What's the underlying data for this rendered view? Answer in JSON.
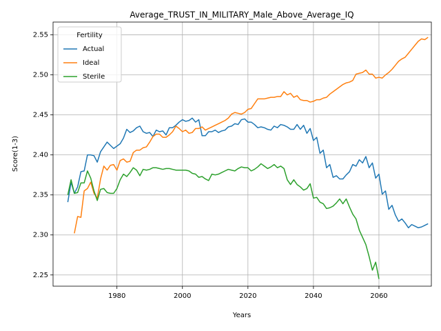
{
  "chart_data": {
    "type": "line",
    "title": "Average_TRUST_IN_MILITARY_Male_Above_Average_IQ",
    "x_label": "Years",
    "y_label": "Score(1-3)",
    "legend_title": "Fertility",
    "legend_position": "upper left",
    "grid": true,
    "xlim": [
      1960.5,
      2076
    ],
    "ylim": [
      2.236,
      2.566
    ],
    "xticks": [
      1980,
      2000,
      2020,
      2040,
      2060
    ],
    "yticks": [
      2.25,
      {
        "value": 2.3,
        "label": "2.30"
      },
      2.35,
      {
        "value": 2.4,
        "label": "2.40"
      },
      2.45,
      {
        "value": 2.5,
        "label": "2.50"
      },
      2.55
    ],
    "x": [
      1965,
      1966,
      1967,
      1968,
      1969,
      1970,
      1971,
      1972,
      1973,
      1974,
      1975,
      1976,
      1977,
      1978,
      1979,
      1980,
      1981,
      1982,
      1983,
      1984,
      1985,
      1986,
      1987,
      1988,
      1989,
      1990,
      1991,
      1992,
      1993,
      1994,
      1995,
      1996,
      1997,
      1998,
      1999,
      2000,
      2001,
      2002,
      2003,
      2004,
      2005,
      2006,
      2007,
      2008,
      2009,
      2010,
      2011,
      2012,
      2013,
      2014,
      2015,
      2016,
      2017,
      2018,
      2019,
      2020,
      2021,
      2022,
      2023,
      2024,
      2025,
      2026,
      2027,
      2028,
      2029,
      2030,
      2031,
      2032,
      2033,
      2034,
      2035,
      2036,
      2037,
      2038,
      2039,
      2040,
      2041,
      2042,
      2043,
      2044,
      2045,
      2046,
      2047,
      2048,
      2049,
      2050,
      2051,
      2052,
      2053,
      2054,
      2055,
      2056,
      2057,
      2058,
      2059,
      2060,
      2061,
      2062,
      2063,
      2064,
      2065,
      2066,
      2067,
      2068,
      2069,
      2070,
      2071,
      2072,
      2073,
      2074,
      2075
    ],
    "series": [
      {
        "name": "Actual",
        "color": "#1f77b4",
        "values": [
          2.341,
          2.366,
          2.352,
          2.36,
          2.379,
          2.38,
          2.4,
          2.4,
          2.399,
          2.391,
          2.404,
          2.41,
          2.416,
          2.412,
          2.408,
          2.411,
          2.414,
          2.421,
          2.432,
          2.428,
          2.43,
          2.434,
          2.436,
          2.429,
          2.427,
          2.428,
          2.423,
          2.431,
          2.429,
          2.43,
          2.425,
          2.434,
          2.434,
          2.437,
          2.441,
          2.444,
          2.442,
          2.443,
          2.446,
          2.441,
          2.444,
          2.424,
          2.424,
          2.429,
          2.429,
          2.431,
          2.428,
          2.43,
          2.431,
          2.435,
          2.436,
          2.439,
          2.438,
          2.444,
          2.445,
          2.441,
          2.441,
          2.438,
          2.434,
          2.435,
          2.434,
          2.432,
          2.431,
          2.436,
          2.434,
          2.438,
          2.437,
          2.435,
          2.432,
          2.432,
          2.438,
          2.432,
          2.437,
          2.427,
          2.433,
          2.418,
          2.422,
          2.402,
          2.406,
          2.384,
          2.388,
          2.372,
          2.374,
          2.37,
          2.37,
          2.375,
          2.379,
          2.388,
          2.386,
          2.394,
          2.39,
          2.398,
          2.384,
          2.39,
          2.371,
          2.376,
          2.351,
          2.355,
          2.332,
          2.337,
          2.325,
          2.317,
          2.32,
          2.315,
          2.309,
          2.313,
          2.311,
          2.309,
          2.31,
          2.312,
          2.314
        ]
      },
      {
        "name": "Ideal",
        "color": "#ff7f0e",
        "values": [
          null,
          null,
          2.302,
          2.323,
          2.322,
          2.355,
          2.358,
          2.366,
          2.352,
          2.346,
          2.37,
          2.386,
          2.381,
          2.387,
          2.388,
          2.381,
          2.393,
          2.395,
          2.391,
          2.392,
          2.403,
          2.406,
          2.406,
          2.409,
          2.41,
          2.416,
          2.423,
          2.426,
          2.426,
          2.422,
          2.422,
          2.425,
          2.429,
          2.436,
          2.433,
          2.429,
          2.431,
          2.427,
          2.428,
          2.433,
          2.433,
          2.435,
          2.431,
          2.433,
          2.435,
          2.437,
          2.439,
          2.441,
          2.443,
          2.446,
          2.451,
          2.453,
          2.452,
          2.451,
          2.453,
          2.457,
          2.458,
          2.464,
          2.47,
          2.47,
          2.47,
          2.471,
          2.472,
          2.472,
          2.473,
          2.473,
          2.479,
          2.475,
          2.477,
          2.472,
          2.474,
          2.469,
          2.468,
          2.468,
          2.466,
          2.467,
          2.469,
          2.469,
          2.471,
          2.472,
          2.476,
          2.479,
          2.482,
          2.485,
          2.488,
          2.49,
          2.491,
          2.493,
          2.501,
          2.502,
          2.503,
          2.506,
          2.501,
          2.501,
          2.496,
          2.497,
          2.496,
          2.5,
          2.503,
          2.507,
          2.512,
          2.517,
          2.52,
          2.522,
          2.527,
          2.532,
          2.537,
          2.542,
          2.545,
          2.544,
          2.547
        ]
      },
      {
        "name": "Sterile",
        "color": "#2ca02c",
        "values": [
          2.35,
          2.369,
          2.352,
          2.353,
          2.365,
          2.365,
          2.38,
          2.371,
          2.355,
          2.343,
          2.357,
          2.358,
          2.353,
          2.352,
          2.352,
          2.358,
          2.369,
          2.376,
          2.373,
          2.378,
          2.384,
          2.381,
          2.374,
          2.382,
          2.381,
          2.382,
          2.384,
          2.384,
          2.383,
          2.382,
          2.383,
          2.383,
          2.382,
          2.381,
          2.381,
          2.381,
          2.381,
          2.38,
          2.377,
          2.376,
          2.372,
          2.373,
          2.37,
          2.368,
          2.376,
          2.375,
          2.376,
          2.378,
          2.38,
          2.382,
          2.381,
          2.38,
          2.383,
          2.385,
          2.384,
          2.384,
          2.38,
          2.382,
          2.385,
          2.389,
          2.386,
          2.383,
          2.385,
          2.388,
          2.384,
          2.386,
          2.383,
          2.369,
          2.363,
          2.369,
          2.363,
          2.36,
          2.356,
          2.358,
          2.364,
          2.346,
          2.347,
          2.341,
          2.339,
          2.333,
          2.334,
          2.336,
          2.34,
          2.345,
          2.339,
          2.345,
          2.335,
          2.326,
          2.32,
          2.306,
          2.297,
          2.288,
          2.273,
          2.256,
          2.266,
          2.245,
          null,
          null,
          null,
          null,
          null,
          null,
          null,
          null,
          null,
          null,
          null,
          null,
          null,
          null,
          null
        ]
      }
    ]
  }
}
